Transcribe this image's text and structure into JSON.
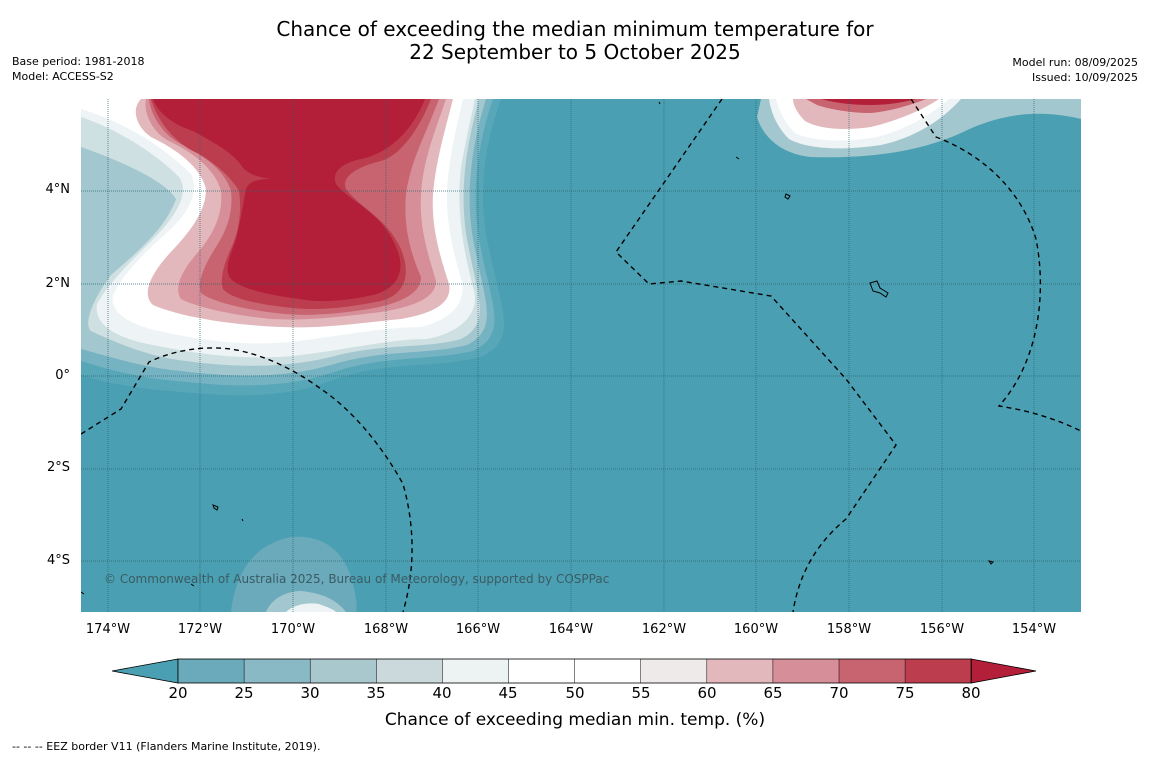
{
  "title": {
    "line1": "Chance of exceeding the median minimum temperature for",
    "line2": "22 September to 5 October 2025"
  },
  "meta_left": {
    "base_period": "Base period: 1981-2018",
    "model": "Model: ACCESS-S2"
  },
  "meta_right": {
    "model_run": "Model run: 08/09/2025",
    "issued": "Issued: 10/09/2025"
  },
  "map": {
    "lat_labels": [
      "4°N",
      "2°N",
      "0°",
      "2°S",
      "4°S"
    ],
    "lon_labels": [
      "174°W",
      "172°W",
      "170°W",
      "168°W",
      "166°W",
      "164°W",
      "162°W",
      "160°W",
      "158°W",
      "156°W",
      "154°W"
    ],
    "copyright": "© Commonwealth of Australia 2025, Bureau of Meteorology, supported by COSPPac",
    "background_color": "#4aa0b2"
  },
  "colorbar": {
    "ticks": [
      "20",
      "25",
      "30",
      "35",
      "40",
      "45",
      "50",
      "55",
      "60",
      "65",
      "70",
      "75",
      "80"
    ],
    "colors": [
      "#4aa0b2",
      "#6aaabb",
      "#88b9c5",
      "#a9c8cd",
      "#cbd9dc",
      "#edf2f3",
      "#ffffff",
      "#ffffff",
      "#efeaea",
      "#e3b8bd",
      "#d68e98",
      "#c8646f",
      "#bc3e4e",
      "#b31e38"
    ],
    "label": "Chance of exceeding median min. temp. (%)"
  },
  "legend": {
    "eez": "--  --  -- EEZ border V11 (Flanders Marine Institute, 2019)."
  }
}
